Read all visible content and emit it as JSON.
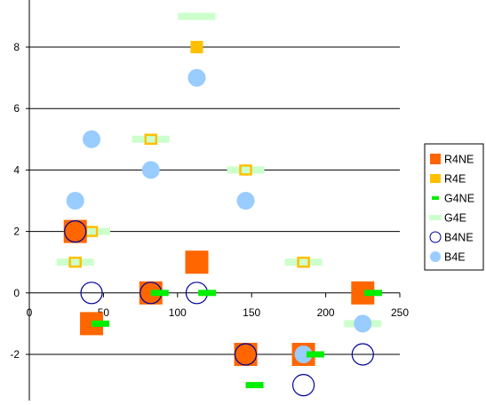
{
  "chart_data": {
    "type": "scatter",
    "title": "",
    "xlabel": "",
    "ylabel": "",
    "xlim": [
      0,
      250
    ],
    "ylim": [
      -3.5,
      9.5
    ],
    "x_ticks": [
      0,
      50,
      100,
      150,
      200,
      250
    ],
    "x_tick_labels": [
      "0",
      "50",
      "100",
      "150",
      "200",
      "250"
    ],
    "y_ticks": [
      -2,
      0,
      2,
      4,
      6,
      8
    ],
    "y_tick_labels": [
      "-2",
      "0",
      "2",
      "4",
      "6",
      "8"
    ],
    "grid": "horizontal major gridlines",
    "legend_position": "right",
    "series": [
      {
        "name": "R4NE",
        "marker": "square-large",
        "color": "#FF6600",
        "points": [
          [
            31,
            2
          ],
          [
            42,
            -1
          ],
          [
            82,
            0
          ],
          [
            113,
            1
          ],
          [
            146,
            -2
          ],
          [
            185,
            -2
          ],
          [
            225,
            0
          ]
        ]
      },
      {
        "name": "R4E",
        "marker": "square-small",
        "color": "#FFC000",
        "points": [
          [
            113,
            8
          ]
        ]
      },
      {
        "name": "G4NE",
        "marker": "dash",
        "color": "#00EE00",
        "points": [
          [
            48,
            -1
          ],
          [
            88,
            0
          ],
          [
            120,
            0
          ],
          [
            152,
            -3
          ],
          [
            193,
            -2
          ],
          [
            232,
            0
          ]
        ]
      },
      {
        "name": "G4E",
        "marker": "dash-wide",
        "color": "#CCFFCC",
        "points": [
          [
            113,
            9
          ],
          [
            82,
            5
          ],
          [
            146,
            4
          ],
          [
            42,
            2
          ],
          [
            31,
            1
          ],
          [
            185,
            1
          ],
          [
            225,
            -1
          ]
        ]
      },
      {
        "name": "B4NE",
        "marker": "circle-open",
        "color": "#000099",
        "points": [
          [
            31,
            2
          ],
          [
            42,
            0
          ],
          [
            82,
            0
          ],
          [
            113,
            0
          ],
          [
            146,
            -2
          ],
          [
            185,
            -3
          ],
          [
            225,
            -2
          ]
        ]
      },
      {
        "name": "B4E",
        "marker": "circle-filled",
        "color": "#99CCFF",
        "points": [
          [
            113,
            7
          ],
          [
            42,
            5
          ],
          [
            31,
            3
          ],
          [
            82,
            4
          ],
          [
            146,
            3
          ],
          [
            185,
            -2
          ],
          [
            225,
            -1
          ]
        ]
      }
    ],
    "overlay_ticks": {
      "color": "#FFC000",
      "note": "R4E tick marks drawn on G4E dashes",
      "points": [
        [
          82,
          5
        ],
        [
          146,
          4
        ],
        [
          42,
          2
        ],
        [
          31,
          1
        ],
        [
          185,
          1
        ],
        [
          225,
          0
        ],
        [
          31,
          2
        ]
      ]
    }
  }
}
